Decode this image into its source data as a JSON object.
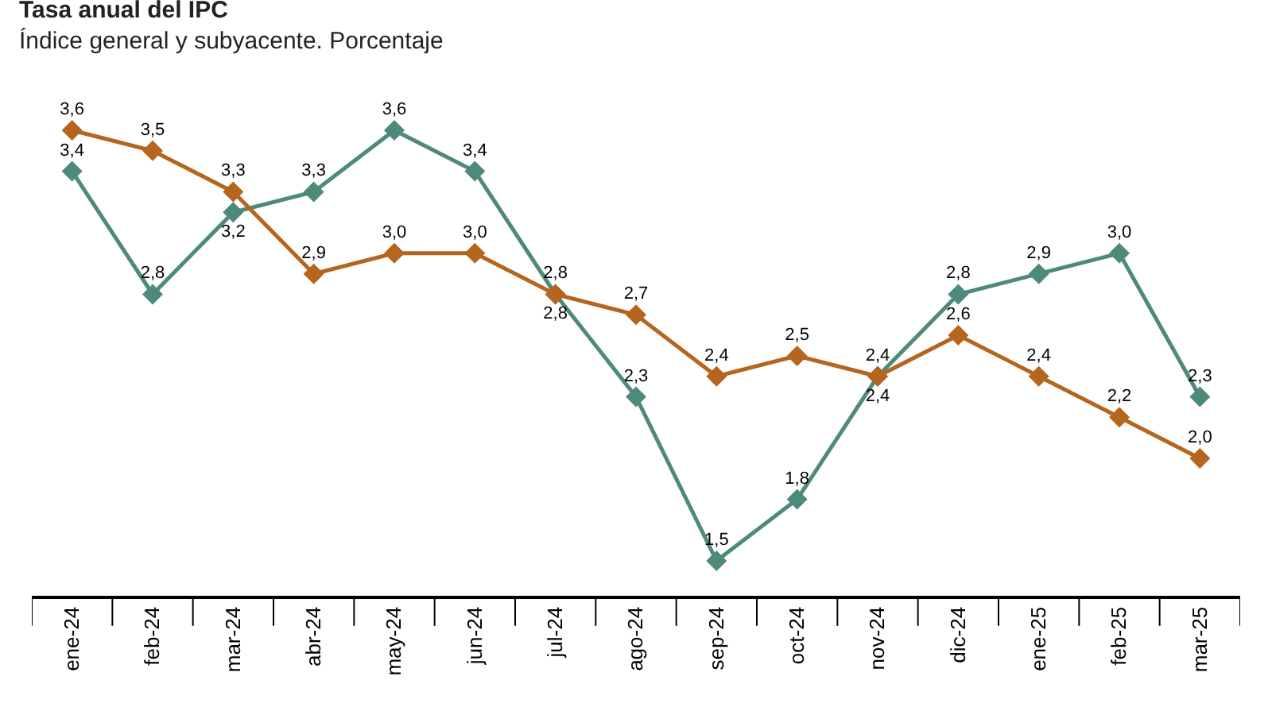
{
  "chart_data": {
    "type": "line",
    "title": "Tasa anual del IPC",
    "subtitle": "Índice general y subyacente. Porcentaje",
    "categories": [
      "ene-24",
      "feb-24",
      "mar-24",
      "abr-24",
      "may-24",
      "jun-24",
      "jul-24",
      "ago-24",
      "sep-24",
      "oct-24",
      "nov-24",
      "dic-24",
      "ene-25",
      "feb-25",
      "mar-25"
    ],
    "series": [
      {
        "color": "#4e8a7c",
        "values": [
          3.4,
          2.8,
          3.2,
          3.3,
          3.6,
          3.4,
          2.8,
          2.3,
          1.5,
          1.8,
          2.4,
          2.8,
          2.9,
          3.0,
          2.3
        ],
        "value_labels": [
          "3,4",
          "2,8",
          "3,2",
          "3,3",
          "3,6",
          "3,4",
          "2,8",
          "2,3",
          "1,5",
          "1,8",
          "2,4",
          "2,8",
          "2,9",
          "3,0",
          "2,3"
        ]
      },
      {
        "color": "#b5651d",
        "values": [
          3.6,
          3.5,
          3.3,
          2.9,
          3.0,
          3.0,
          2.8,
          2.7,
          2.4,
          2.5,
          2.4,
          2.6,
          2.4,
          2.2,
          2.0
        ],
        "value_labels": [
          "3,6",
          "3,5",
          "3,3",
          "2,9",
          "3,0",
          "3,0",
          "2,8",
          "2,7",
          "2,4",
          "2,5",
          "2,4",
          "2,6",
          "2,4",
          "2,2",
          "2,0"
        ]
      }
    ],
    "marker": "diamond",
    "line_style": "solid"
  }
}
